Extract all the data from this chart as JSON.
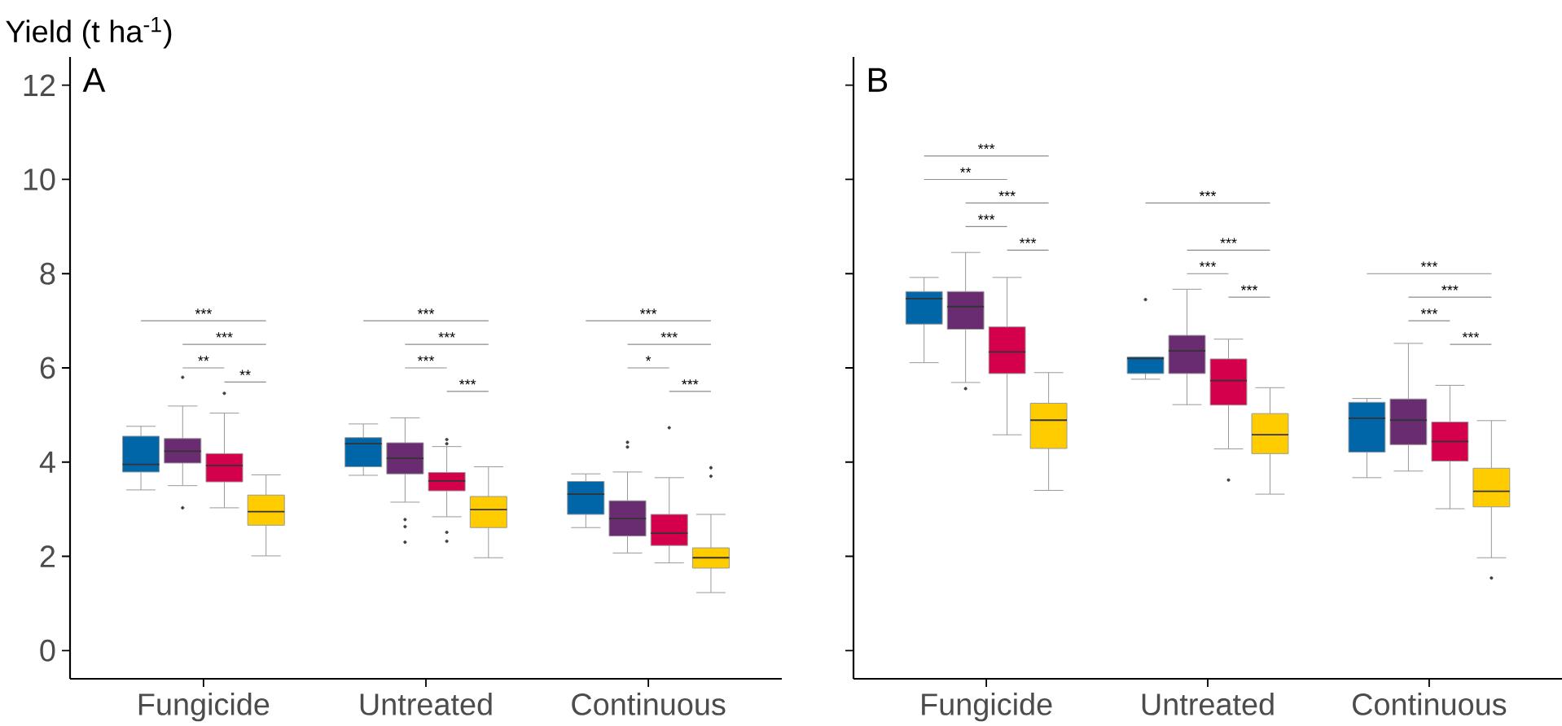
{
  "chart_data": [
    {
      "type": "box",
      "title": "A",
      "ylabel": "Yield (t ha$^{-1}$)",
      "categories": [
        "Fungicide",
        "Untreated",
        "Continuous"
      ],
      "ylim": [
        -0.6,
        12.6
      ],
      "yticks": [
        0,
        2,
        4,
        6,
        8,
        10,
        12
      ],
      "series": [
        {
          "color": "#0066a8",
          "boxes": [
            {
              "low": 3.41,
              "q1": 3.79,
              "median": 3.95,
              "q3": 4.55,
              "high": 4.76
            },
            {
              "low": 3.72,
              "q1": 3.9,
              "median": 4.39,
              "q3": 4.52,
              "high": 4.81
            },
            {
              "low": 2.61,
              "q1": 2.89,
              "median": 3.32,
              "q3": 3.59,
              "high": 3.75
            }
          ]
        },
        {
          "color": "#6a2c70",
          "boxes": [
            {
              "low": 3.5,
              "q1": 3.98,
              "median": 4.23,
              "q3": 4.5,
              "high": 5.19,
              "outliers": [
                5.8,
                3.03
              ]
            },
            {
              "low": 3.15,
              "q1": 3.75,
              "median": 4.08,
              "q3": 4.41,
              "high": 4.94,
              "outliers": [
                2.78,
                2.63,
                2.3
              ]
            },
            {
              "low": 2.07,
              "q1": 2.43,
              "median": 2.8,
              "q3": 3.18,
              "high": 3.79,
              "outliers": [
                4.42,
                4.32
              ]
            }
          ]
        },
        {
          "color": "#d4004c",
          "boxes": [
            {
              "low": 3.03,
              "q1": 3.58,
              "median": 3.93,
              "q3": 4.18,
              "high": 5.04,
              "outliers": [
                5.46
              ]
            },
            {
              "low": 2.84,
              "q1": 3.39,
              "median": 3.6,
              "q3": 3.78,
              "high": 4.33,
              "outliers": [
                4.48,
                4.39,
                2.51,
                2.32
              ]
            },
            {
              "low": 1.86,
              "q1": 2.23,
              "median": 2.49,
              "q3": 2.89,
              "high": 3.67,
              "outliers": [
                4.73
              ]
            }
          ]
        },
        {
          "color": "#ffcc00",
          "boxes": [
            {
              "low": 2.01,
              "q1": 2.66,
              "median": 2.95,
              "q3": 3.3,
              "high": 3.73
            },
            {
              "low": 1.97,
              "q1": 2.61,
              "median": 2.99,
              "q3": 3.27,
              "high": 3.9
            },
            {
              "low": 1.23,
              "q1": 1.75,
              "median": 1.97,
              "q3": 2.18,
              "high": 2.89,
              "outliers": [
                3.88,
                3.7
              ]
            }
          ]
        }
      ],
      "annotations": [
        "***",
        "***",
        "**",
        "**",
        "***",
        "***",
        "***",
        "***",
        "***",
        "***",
        "*",
        "***"
      ]
    },
    {
      "type": "box",
      "title": "B",
      "categories": [
        "Fungicide",
        "Untreated",
        "Continuous"
      ],
      "ylim": [
        -0.6,
        12.6
      ],
      "yticks": [
        0,
        2,
        4,
        6,
        8,
        10,
        12
      ],
      "tick_labels": "x",
      "series": [
        {
          "color": "#0066a8",
          "boxes": [
            {
              "low": 6.11,
              "q1": 6.93,
              "median": 7.47,
              "q3": 7.62,
              "high": 7.92
            },
            {
              "low": 5.76,
              "q1": 5.88,
              "median": 6.2,
              "q3": 6.23,
              "high": 6.23,
              "outliers": [
                7.45
              ]
            },
            {
              "low": 3.67,
              "q1": 4.21,
              "median": 4.93,
              "q3": 5.27,
              "high": 5.35
            }
          ]
        },
        {
          "color": "#6a2c70",
          "boxes": [
            {
              "low": 5.69,
              "q1": 6.82,
              "median": 7.3,
              "q3": 7.62,
              "high": 8.45,
              "outliers": [
                5.56
              ]
            },
            {
              "low": 5.22,
              "q1": 5.88,
              "median": 6.36,
              "q3": 6.69,
              "high": 7.67
            },
            {
              "low": 3.81,
              "q1": 4.37,
              "median": 4.89,
              "q3": 5.34,
              "high": 6.52
            }
          ]
        },
        {
          "color": "#d4004c",
          "boxes": [
            {
              "low": 4.58,
              "q1": 5.88,
              "median": 6.34,
              "q3": 6.87,
              "high": 7.92
            },
            {
              "low": 4.28,
              "q1": 5.21,
              "median": 5.73,
              "q3": 6.19,
              "high": 6.61,
              "outliers": [
                3.62
              ]
            },
            {
              "low": 3.01,
              "q1": 4.02,
              "median": 4.44,
              "q3": 4.85,
              "high": 5.63
            }
          ]
        },
        {
          "color": "#ffcc00",
          "boxes": [
            {
              "low": 3.4,
              "q1": 4.29,
              "median": 4.89,
              "q3": 5.25,
              "high": 5.9
            },
            {
              "low": 3.32,
              "q1": 4.18,
              "median": 4.58,
              "q3": 5.03,
              "high": 5.58
            },
            {
              "low": 1.97,
              "q1": 3.05,
              "median": 3.38,
              "q3": 3.87,
              "high": 4.88,
              "outliers": [
                1.54
              ]
            }
          ]
        }
      ],
      "annotations": [
        "***",
        "**",
        "***",
        "***",
        "***",
        "***",
        "***",
        "***",
        "***",
        "***",
        "***",
        "***",
        "***"
      ]
    }
  ]
}
